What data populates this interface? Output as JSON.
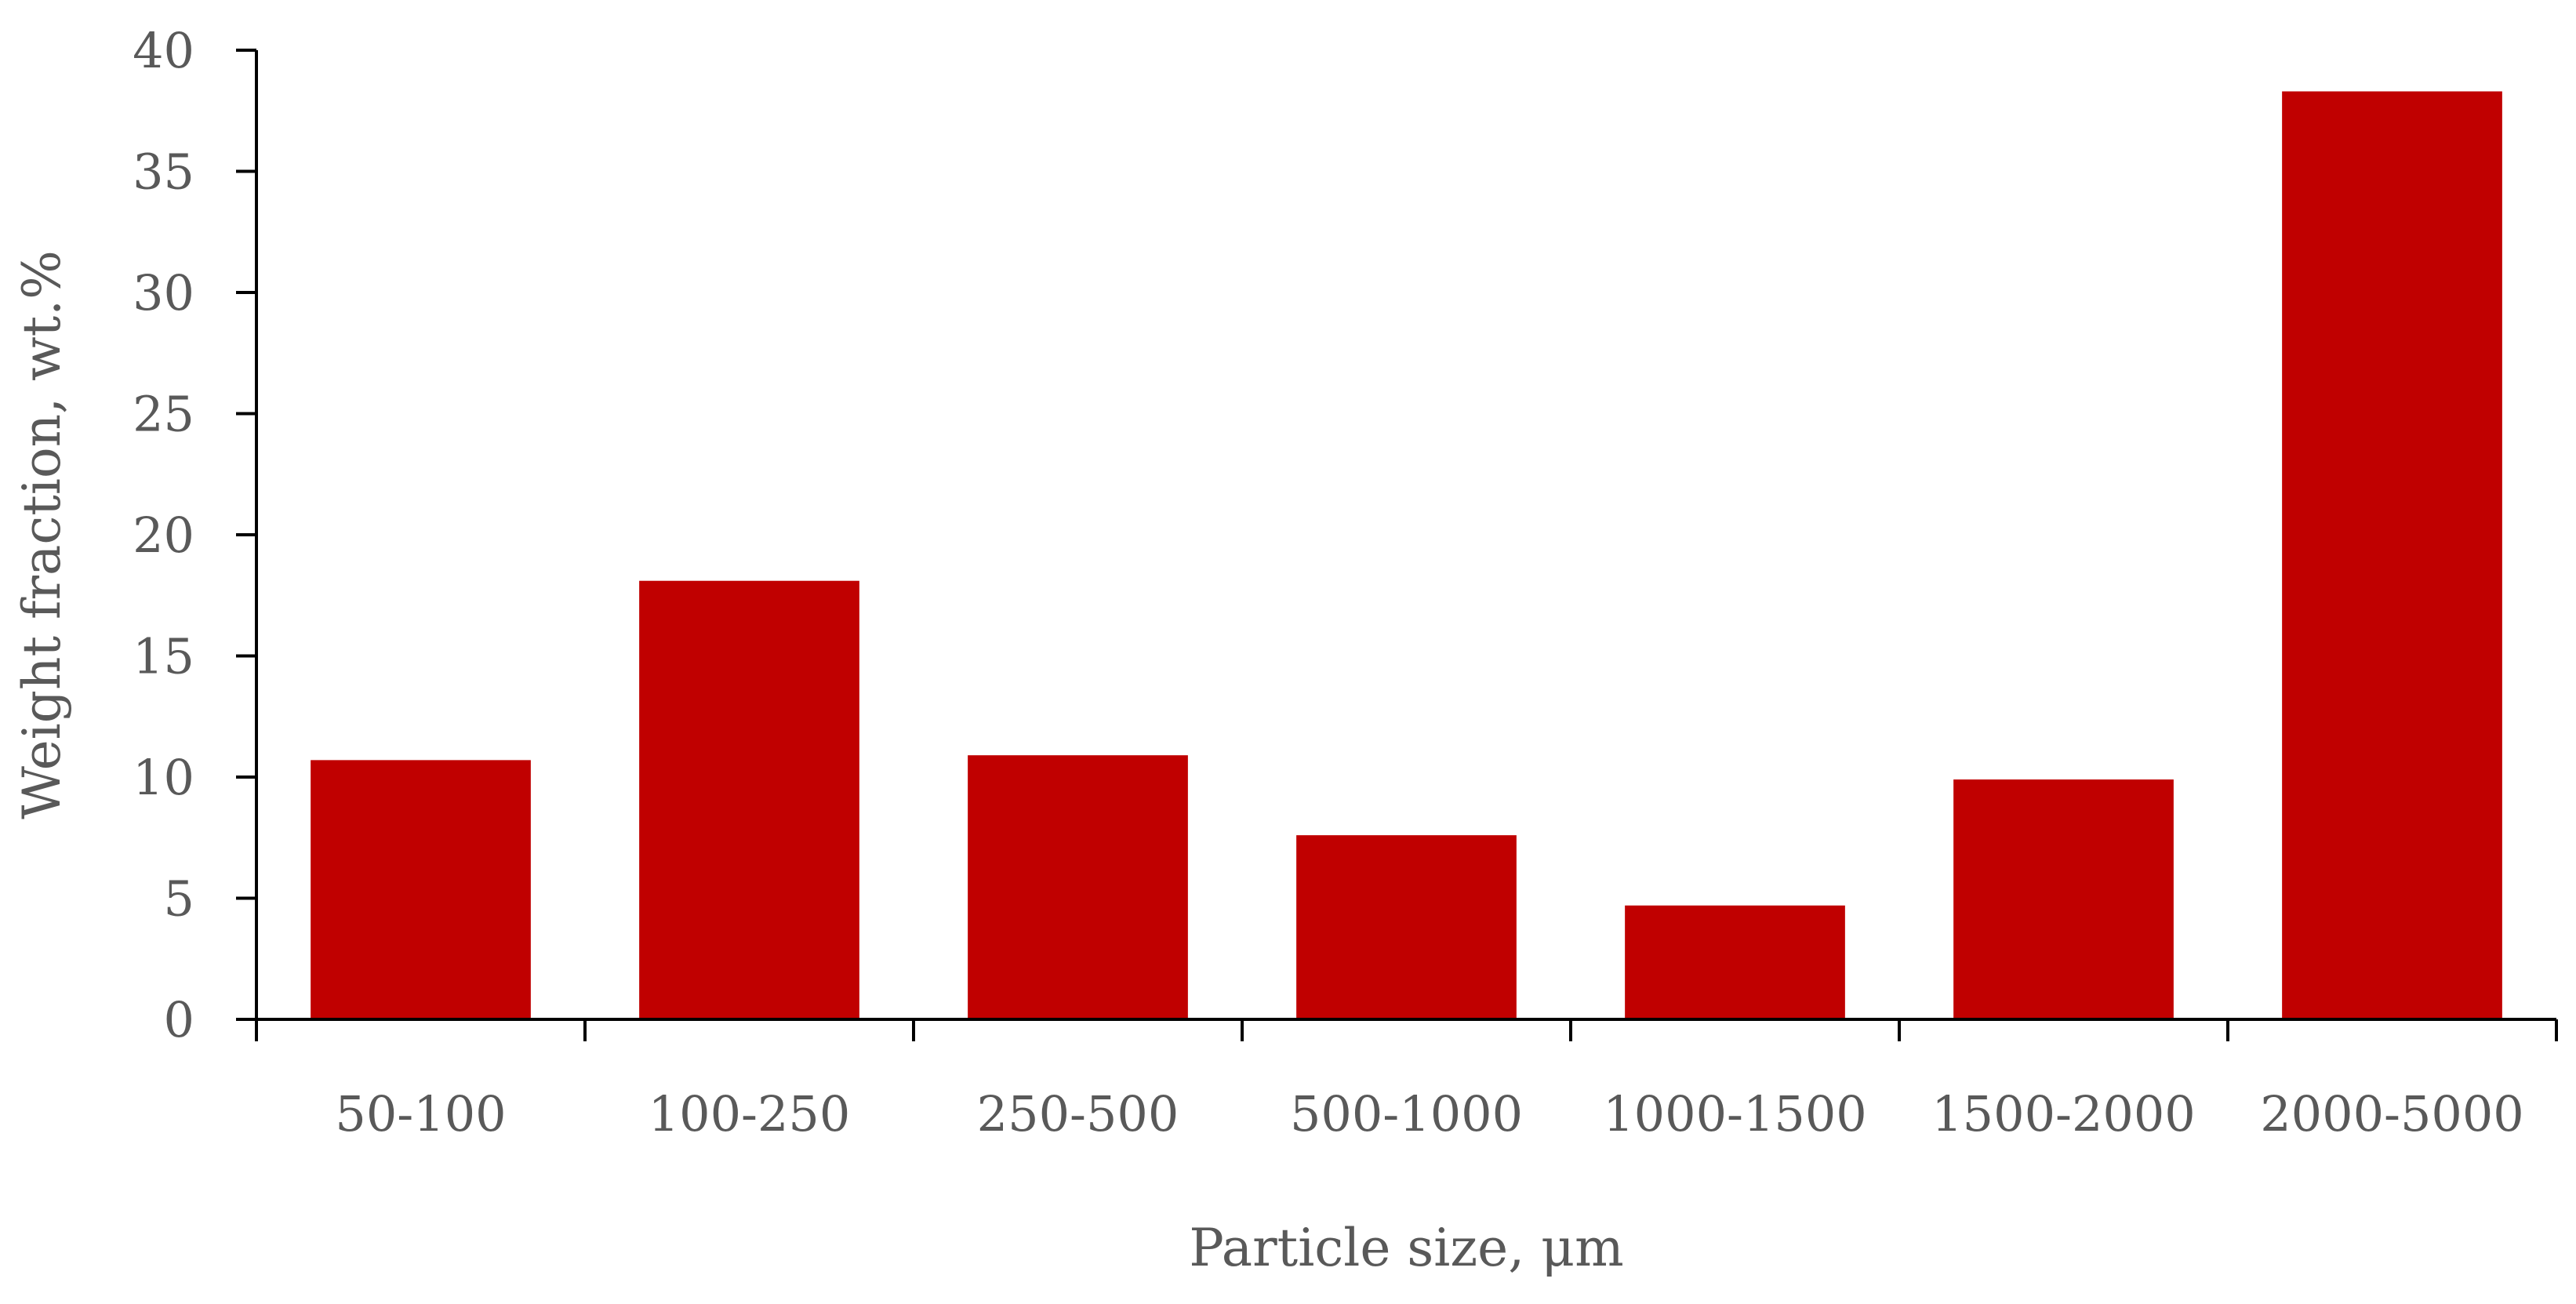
{
  "chart_data": {
    "type": "bar",
    "title": "",
    "xlabel": "Particle size, μm",
    "ylabel": "Weight fraction, wt.%",
    "categories": [
      "50-100",
      "100-250",
      "250-500",
      "500-1000",
      "1000-1500",
      "1500-2000",
      "2000-5000"
    ],
    "values": [
      10.7,
      18.1,
      10.9,
      7.6,
      4.7,
      9.9,
      38.3
    ],
    "ylim": [
      0,
      40
    ],
    "yticks": [
      "0",
      "5",
      "10",
      "15",
      "20",
      "25",
      "30",
      "35",
      "40"
    ],
    "grid": false,
    "legend": "none",
    "bar_color": "#C00000",
    "axis_color": "#000000",
    "text_color": "#595959"
  }
}
